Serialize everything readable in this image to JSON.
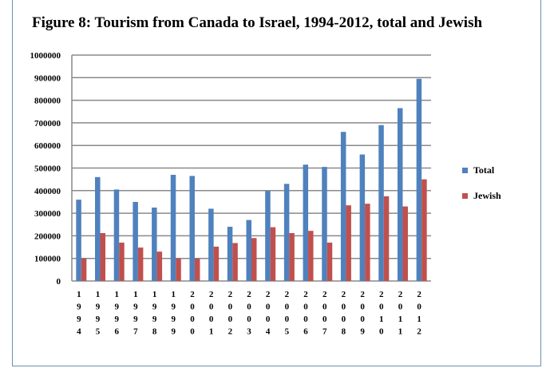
{
  "chart_data": {
    "type": "bar",
    "title": "Figure 8: Tourism from Canada to Israel, 1994-2012, total and Jewish",
    "categories": [
      "1994",
      "1995",
      "1996",
      "1997",
      "1998",
      "1999",
      "2000",
      "2001",
      "2002",
      "2003",
      "2004",
      "2005",
      "2006",
      "2007",
      "2008",
      "2009",
      "2010",
      "2011",
      "2012"
    ],
    "series": [
      {
        "name": "Total",
        "color": "#4f81bd",
        "values": [
          360000,
          460000,
          405000,
          350000,
          325000,
          470000,
          465000,
          320000,
          240000,
          270000,
          398000,
          430000,
          515000,
          505000,
          660000,
          560000,
          690000,
          765000,
          895000
        ]
      },
      {
        "name": "Jewish",
        "color": "#c0504d",
        "values": [
          100000,
          212000,
          170000,
          148000,
          130000,
          100000,
          100000,
          152000,
          168000,
          190000,
          238000,
          212000,
          222000,
          170000,
          335000,
          342000,
          375000,
          330000,
          450000
        ]
      }
    ],
    "ylim": [
      0,
      1000000
    ],
    "yticks": [
      "0",
      "100000",
      "200000",
      "300000",
      "400000",
      "500000",
      "600000",
      "700000",
      "800000",
      "900000",
      "1000000"
    ],
    "grid": true,
    "legend_position": "right"
  }
}
